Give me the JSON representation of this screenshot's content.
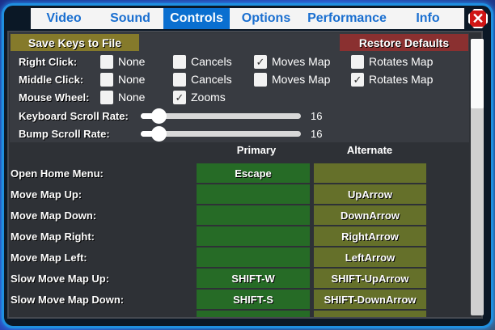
{
  "tabs": [
    {
      "label": "Video",
      "active": false
    },
    {
      "label": "Sound",
      "active": false
    },
    {
      "label": "Controls",
      "active": true
    },
    {
      "label": "Options",
      "active": false
    },
    {
      "label": "Performance",
      "active": false
    },
    {
      "label": "Info",
      "active": false
    }
  ],
  "close_icon": "close-icon",
  "buttons": {
    "save": "Save Keys to File",
    "restore": "Restore Defaults"
  },
  "colors": {
    "save": "#857a2b",
    "restore": "#8a3030",
    "primary": "#266b26",
    "alternate": "#65702a",
    "active_tab": "#0a6fd0"
  },
  "mouse": [
    {
      "label": "Right Click:",
      "options": [
        {
          "label": "None",
          "checked": false
        },
        {
          "label": "Cancels",
          "checked": false
        },
        {
          "label": "Moves Map",
          "checked": true
        },
        {
          "label": "Rotates Map",
          "checked": false
        }
      ]
    },
    {
      "label": "Middle Click:",
      "options": [
        {
          "label": "None",
          "checked": false
        },
        {
          "label": "Cancels",
          "checked": false
        },
        {
          "label": "Moves Map",
          "checked": false
        },
        {
          "label": "Rotates Map",
          "checked": true
        }
      ]
    },
    {
      "label": "Mouse Wheel:",
      "options": [
        {
          "label": "None",
          "checked": false
        },
        {
          "label": "Zooms",
          "checked": true
        }
      ]
    }
  ],
  "sliders": [
    {
      "label": "Keyboard Scroll Rate:",
      "value": "16",
      "fraction": 0.11
    },
    {
      "label": "Bump Scroll Rate:",
      "value": "16",
      "fraction": 0.11
    }
  ],
  "headers": {
    "primary": "Primary",
    "alternate": "Alternate"
  },
  "bindings": [
    {
      "action": "Open Home Menu:",
      "primary": "Escape",
      "alternate": ""
    },
    {
      "action": "Move Map Up:",
      "primary": "",
      "alternate": "UpArrow"
    },
    {
      "action": "Move Map Down:",
      "primary": "",
      "alternate": "DownArrow"
    },
    {
      "action": "Move Map Right:",
      "primary": "",
      "alternate": "RightArrow"
    },
    {
      "action": "Move Map Left:",
      "primary": "",
      "alternate": "LeftArrow"
    },
    {
      "action": "Slow Move Map Up:",
      "primary": "SHIFT-W",
      "alternate": "SHIFT-UpArrow"
    },
    {
      "action": "Slow Move Map Down:",
      "primary": "SHIFT-S",
      "alternate": "SHIFT-DownArrow"
    },
    {
      "action": "",
      "primary": "",
      "alternate": ""
    }
  ]
}
